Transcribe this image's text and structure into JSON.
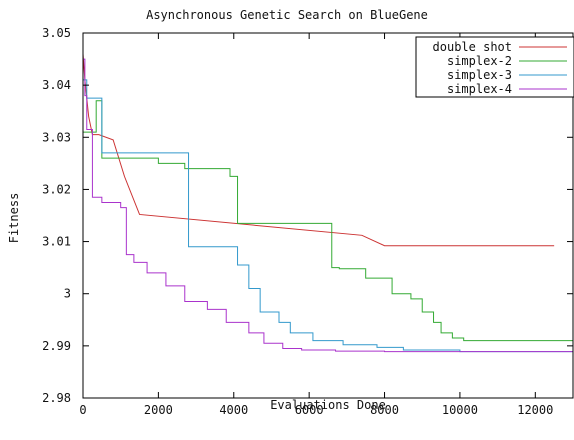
{
  "chart_data": {
    "type": "line",
    "title": "Asynchronous Genetic Search on BlueGene",
    "xlabel": "Evaluations Done",
    "ylabel": "Fitness",
    "xlim": [
      0,
      13000
    ],
    "ylim": [
      2.98,
      3.05
    ],
    "x_ticks": [
      0,
      2000,
      4000,
      6000,
      8000,
      10000,
      12000
    ],
    "x_tick_labels": [
      "0",
      "2000",
      "4000",
      "6000",
      "8000",
      "10000",
      "12000"
    ],
    "y_ticks": [
      2.98,
      2.99,
      3.0,
      3.01,
      3.02,
      3.03,
      3.04,
      3.05
    ],
    "y_tick_labels": [
      "2.98",
      "2.99",
      "3",
      "3.01",
      "3.02",
      "3.03",
      "3.04",
      "3.05"
    ],
    "grid": false,
    "legend_position": "top-right",
    "series": [
      {
        "name": "double shot",
        "color": "#cc3333",
        "x": [
          0,
          50,
          150,
          250,
          420,
          800,
          1100,
          1500,
          7400,
          8000,
          12500
        ],
        "y": [
          3.046,
          3.041,
          3.034,
          3.0305,
          3.0305,
          3.0295,
          3.0225,
          3.0152,
          3.0112,
          3.0092,
          3.0092
        ]
      },
      {
        "name": "simplex-2",
        "color": "#33aa33",
        "x": [
          0,
          120,
          350,
          500,
          2000,
          2700,
          3900,
          4100,
          6600,
          6800,
          7500,
          8200,
          8700,
          9000,
          9300,
          9500,
          9800,
          10100,
          10500,
          13000
        ],
        "y": [
          3.031,
          3.031,
          3.037,
          3.026,
          3.025,
          3.024,
          3.0225,
          3.0135,
          3.005,
          3.0048,
          3.003,
          3.0,
          2.999,
          2.9965,
          2.9945,
          2.9925,
          2.9915,
          2.991,
          2.991,
          2.9905
        ],
        "step": true
      },
      {
        "name": "simplex-3",
        "color": "#3399cc",
        "x": [
          0,
          100,
          350,
          500,
          2700,
          2800,
          4100,
          4400,
          4700,
          5200,
          5500,
          6100,
          6900,
          7800,
          8500,
          10000,
          13000
        ],
        "y": [
          3.041,
          3.0375,
          3.0375,
          3.027,
          3.027,
          3.009,
          3.0055,
          3.001,
          2.9965,
          2.9945,
          2.9925,
          2.991,
          2.9902,
          2.9897,
          2.9892,
          2.9889,
          2.9889
        ],
        "step": true
      },
      {
        "name": "simplex-4",
        "color": "#aa33cc",
        "x": [
          0,
          50,
          100,
          250,
          500,
          1000,
          1150,
          1350,
          1700,
          2200,
          2700,
          3300,
          3800,
          4400,
          4800,
          5300,
          5800,
          6700,
          8000,
          13000
        ],
        "y": [
          3.045,
          3.038,
          3.0315,
          3.0185,
          3.0175,
          3.0165,
          3.0075,
          3.006,
          3.004,
          3.0015,
          2.9985,
          2.997,
          2.9945,
          2.9925,
          2.9905,
          2.9895,
          2.9892,
          2.989,
          2.9889,
          2.9889
        ],
        "step": true
      }
    ]
  }
}
